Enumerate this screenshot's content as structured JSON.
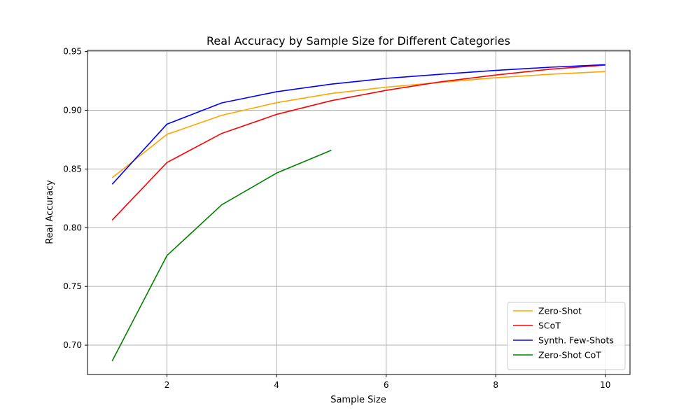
{
  "chart_data": {
    "type": "line",
    "title": "Real Accuracy by Sample Size for Different Categories",
    "xlabel": "Sample Size",
    "ylabel": "Real Accuracy",
    "xlim": [
      0.55,
      10.45
    ],
    "ylim": [
      0.675,
      0.951
    ],
    "xticks": [
      2,
      4,
      6,
      8,
      10
    ],
    "xtick_labels": [
      "2",
      "4",
      "6",
      "8",
      "10"
    ],
    "yticks": [
      0.7,
      0.75,
      0.8,
      0.85,
      0.9,
      0.95
    ],
    "ytick_labels": [
      "0.70",
      "0.75",
      "0.80",
      "0.85",
      "0.90",
      "0.95"
    ],
    "grid": true,
    "legend_position": "lower-right",
    "series": [
      {
        "name": "Zero-Shot",
        "color": "#ffa500",
        "x": [
          1,
          2,
          3,
          4,
          5,
          6,
          7,
          8,
          9,
          10
        ],
        "y": [
          0.8425,
          0.8795,
          0.8957,
          0.9065,
          0.9143,
          0.9197,
          0.9238,
          0.9277,
          0.9307,
          0.933
        ]
      },
      {
        "name": "SCoT",
        "color": "#ff0000",
        "x": [
          1,
          2,
          3,
          4,
          5,
          6,
          7,
          8,
          9,
          10
        ],
        "y": [
          0.8065,
          0.8555,
          0.8803,
          0.8965,
          0.9082,
          0.917,
          0.9243,
          0.93,
          0.935,
          0.9385
        ]
      },
      {
        "name": "Synth. Few-Shots",
        "color": "#0000ff",
        "x": [
          1,
          2,
          3,
          4,
          5,
          6,
          7,
          8,
          9,
          10
        ],
        "y": [
          0.837,
          0.8882,
          0.9063,
          0.9158,
          0.9223,
          0.9272,
          0.9307,
          0.934,
          0.9367,
          0.9388
        ]
      },
      {
        "name": "Zero-Shot CoT",
        "color": "#008000",
        "x": [
          1,
          2,
          3,
          4,
          5
        ],
        "y": [
          0.6865,
          0.7763,
          0.8195,
          0.8465,
          0.866
        ]
      }
    ]
  }
}
